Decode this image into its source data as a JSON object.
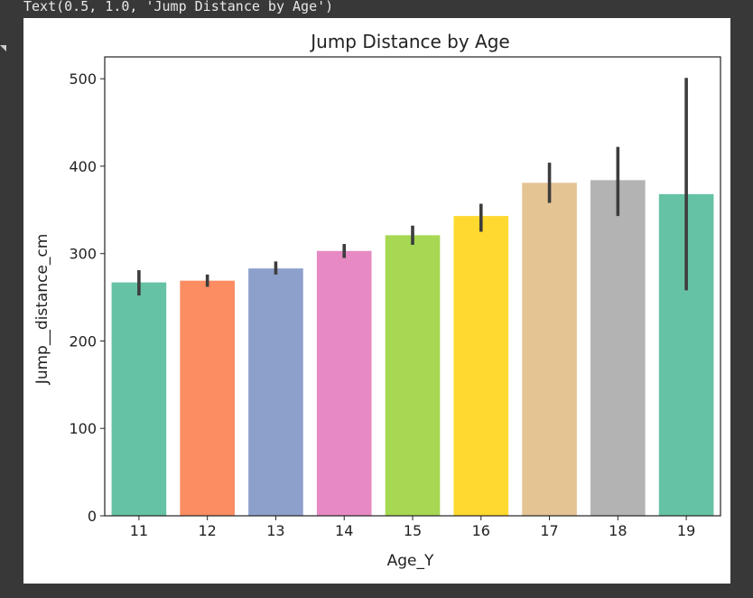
{
  "output": {
    "text": "Text(0.5, 1.0, 'Jump Distance by Age')"
  },
  "chart_data": {
    "type": "bar",
    "title": "Jump Distance by Age",
    "xlabel": "Age_Y",
    "ylabel": "Jump__distance_cm",
    "categories": [
      "11",
      "12",
      "13",
      "14",
      "15",
      "16",
      "17",
      "18",
      "19"
    ],
    "values": [
      267,
      269,
      283,
      303,
      321,
      343,
      381,
      384,
      368
    ],
    "error_low": [
      252,
      262,
      276,
      295,
      310,
      325,
      358,
      343,
      258
    ],
    "error_high": [
      281,
      276,
      291,
      311,
      332,
      357,
      404,
      422,
      501
    ],
    "colors": [
      "#66c2a5",
      "#fc8d62",
      "#8da0cb",
      "#e78ac3",
      "#a6d854",
      "#ffd92f",
      "#e5c494",
      "#b3b3b3",
      "#66c2a5"
    ],
    "ylim": [
      0,
      525
    ],
    "yticks": [
      0,
      100,
      200,
      300,
      400,
      500
    ],
    "grid": false,
    "legend": "none"
  }
}
